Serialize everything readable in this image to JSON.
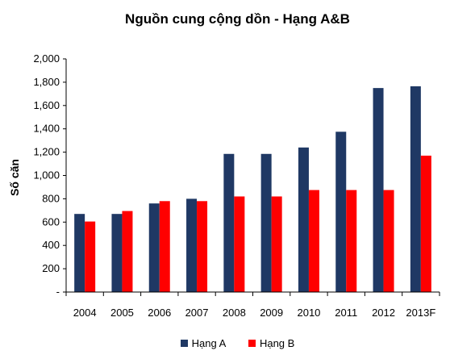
{
  "chart_data": {
    "type": "bar",
    "title": "Nguồn cung cộng dồn - Hạng A&B",
    "ylabel": "Số căn",
    "xlabel": "",
    "ylim": [
      0,
      2000
    ],
    "yticks": [
      0,
      200,
      400,
      600,
      800,
      1000,
      1200,
      1400,
      1600,
      1800,
      2000
    ],
    "ytick_labels": [
      "-",
      "200",
      "400",
      "600",
      "800",
      "1,000",
      "1,200",
      "1,400",
      "1,600",
      "1,800",
      "2,000"
    ],
    "categories": [
      "2004",
      "2005",
      "2006",
      "2007",
      "2008",
      "2009",
      "2010",
      "2011",
      "2012",
      "2013F"
    ],
    "series": [
      {
        "name": "Hạng A",
        "color": "#1f3864",
        "values": [
          670,
          670,
          760,
          800,
          1185,
          1185,
          1240,
          1375,
          1750,
          1765
        ]
      },
      {
        "name": "Hạng B",
        "color": "#ff0000",
        "values": [
          605,
          695,
          780,
          780,
          820,
          820,
          875,
          875,
          875,
          1170
        ]
      }
    ],
    "grid": false,
    "legend_position": "bottom"
  }
}
